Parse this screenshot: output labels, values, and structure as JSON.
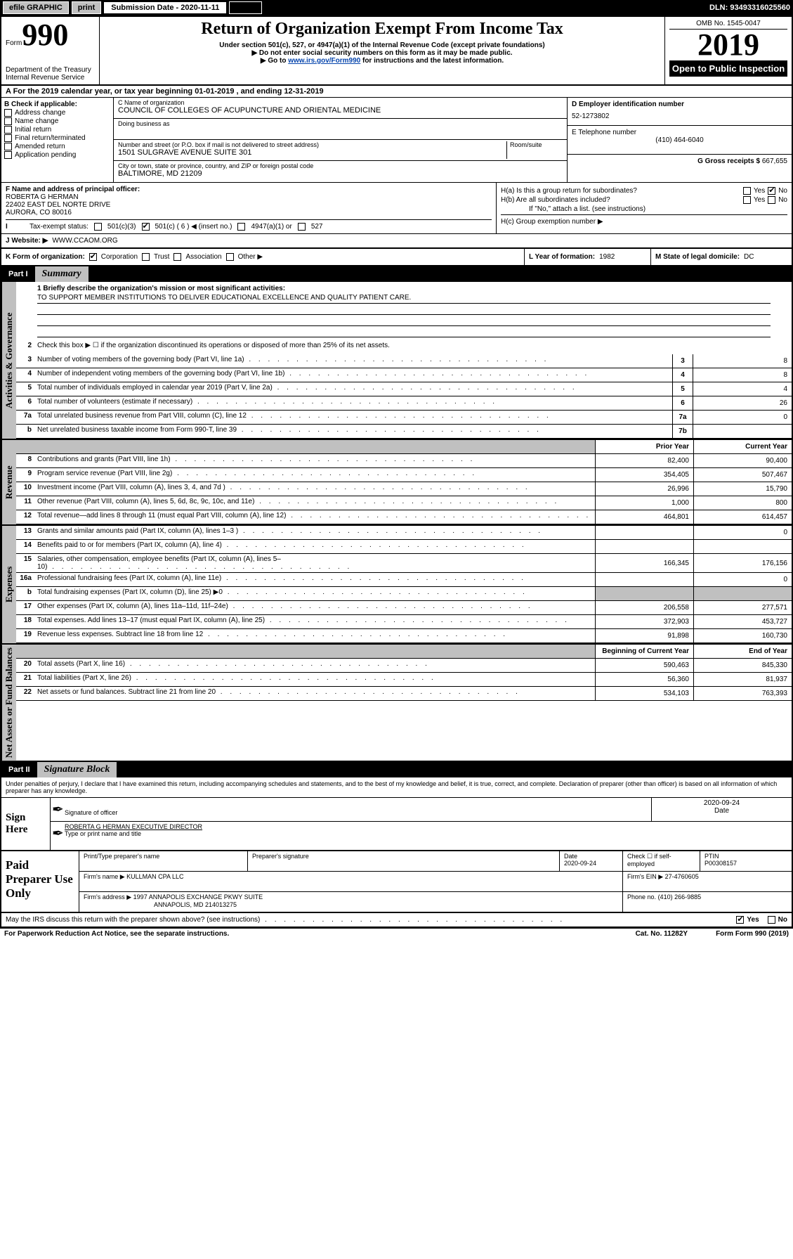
{
  "topbar": {
    "efile": "efile GRAPHIC",
    "print": "print",
    "sub_label": "Submission Date - 2020-11-11",
    "dln": "DLN: 93493316025560"
  },
  "header": {
    "form": "Form",
    "num": "990",
    "dept": "Department of the Treasury\nInternal Revenue Service",
    "title": "Return of Organization Exempt From Income Tax",
    "sub1": "Under section 501(c), 527, or 4947(a)(1) of the Internal Revenue Code (except private foundations)",
    "sub2": "▶ Do not enter social security numbers on this form as it may be made public.",
    "sub3a": "▶ Go to ",
    "sub3_link": "www.irs.gov/Form990",
    "sub3b": " for instructions and the latest information.",
    "omb": "OMB No. 1545-0047",
    "year": "2019",
    "open": "Open to Public Inspection"
  },
  "row_a": "A For the 2019 calendar year, or tax year beginning 01-01-2019    , and ending 12-31-2019",
  "box_b": {
    "title": "B Check if applicable:",
    "items": [
      "Address change",
      "Name change",
      "Initial return",
      "Final return/terminated",
      "Amended return",
      "Application pending"
    ]
  },
  "box_c": {
    "name_lbl": "C Name of organization",
    "name": "COUNCIL OF COLLEGES OF ACUPUNCTURE AND ORIENTAL MEDICINE",
    "dba_lbl": "Doing business as",
    "dba": "",
    "addr_lbl": "Number and street (or P.O. box if mail is not delivered to street address)",
    "room_lbl": "Room/suite",
    "addr": "1501 SULGRAVE AVENUE SUITE 301",
    "city_lbl": "City or town, state or province, country, and ZIP or foreign postal code",
    "city": "BALTIMORE, MD  21209"
  },
  "box_d": {
    "lbl": "D Employer identification number",
    "val": "52-1273802"
  },
  "box_e": {
    "lbl": "E Telephone number",
    "val": "(410) 464-6040"
  },
  "box_g": {
    "lbl": "G Gross receipts $",
    "val": "667,655"
  },
  "box_f": {
    "lbl": "F Name and address of principal officer:",
    "name": "ROBERTA G HERMAN",
    "addr1": "22402 EAST DEL NORTE DRIVE",
    "addr2": "AURORA, CO  80016"
  },
  "box_h": {
    "ha": "H(a)  Is this a group return for subordinates?",
    "hb": "H(b)  Are all subordinates included?",
    "hb_note": "If \"No,\" attach a list. (see instructions)",
    "hc": "H(c)  Group exemption number ▶",
    "yes": "Yes",
    "no": "No"
  },
  "row_i": {
    "lbl": "Tax-exempt status:",
    "o1": "501(c)(3)",
    "o2": "501(c) ( 6 ) ◀ (insert no.)",
    "o3": "4947(a)(1) or",
    "o4": "527"
  },
  "row_j": {
    "lbl": "J   Website: ▶",
    "val": "WWW.CCAOM.ORG"
  },
  "row_k": {
    "lbl": "K Form of organization:",
    "o1": "Corporation",
    "o2": "Trust",
    "o3": "Association",
    "o4": "Other ▶"
  },
  "row_l": {
    "lbl": "L Year of formation:",
    "val": "1982"
  },
  "row_m": {
    "lbl": "M State of legal domicile:",
    "val": "DC"
  },
  "part1": {
    "tag": "Part I",
    "title": "Summary"
  },
  "sideA": "Activities & Governance",
  "sideR": "Revenue",
  "sideE": "Expenses",
  "sideN": "Net Assets or Fund Balances",
  "mission_lbl": "1 Briefly describe the organization's mission or most significant activities:",
  "mission": "TO SUPPORT MEMBER INSTITUTIONS TO DELIVER EDUCATIONAL EXCELLENCE AND QUALITY PATIENT CARE.",
  "line2": "Check this box ▶ ☐  if the organization discontinued its operations or disposed of more than 25% of its net assets.",
  "linesAG": [
    {
      "n": "3",
      "d": "Number of voting members of the governing body (Part VI, line 1a)",
      "c": "3",
      "v": "8"
    },
    {
      "n": "4",
      "d": "Number of independent voting members of the governing body (Part VI, line 1b)",
      "c": "4",
      "v": "8"
    },
    {
      "n": "5",
      "d": "Total number of individuals employed in calendar year 2019 (Part V, line 2a)",
      "c": "5",
      "v": "4"
    },
    {
      "n": "6",
      "d": "Total number of volunteers (estimate if necessary)",
      "c": "6",
      "v": "26"
    },
    {
      "n": "7a",
      "d": "Total unrelated business revenue from Part VIII, column (C), line 12",
      "c": "7a",
      "v": "0"
    },
    {
      "n": "b",
      "d": "Net unrelated business taxable income from Form 990-T, line 39",
      "c": "7b",
      "v": ""
    }
  ],
  "colhdr": {
    "prior": "Prior Year",
    "current": "Current Year",
    "beg": "Beginning of Current Year",
    "end": "End of Year"
  },
  "linesRev": [
    {
      "n": "8",
      "d": "Contributions and grants (Part VIII, line 1h)",
      "p": "82,400",
      "c": "90,400"
    },
    {
      "n": "9",
      "d": "Program service revenue (Part VIII, line 2g)",
      "p": "354,405",
      "c": "507,467"
    },
    {
      "n": "10",
      "d": "Investment income (Part VIII, column (A), lines 3, 4, and 7d )",
      "p": "26,996",
      "c": "15,790"
    },
    {
      "n": "11",
      "d": "Other revenue (Part VIII, column (A), lines 5, 6d, 8c, 9c, 10c, and 11e)",
      "p": "1,000",
      "c": "800"
    },
    {
      "n": "12",
      "d": "Total revenue—add lines 8 through 11 (must equal Part VIII, column (A), line 12)",
      "p": "464,801",
      "c": "614,457"
    }
  ],
  "linesExp": [
    {
      "n": "13",
      "d": "Grants and similar amounts paid (Part IX, column (A), lines 1–3 )",
      "p": "",
      "c": "0"
    },
    {
      "n": "14",
      "d": "Benefits paid to or for members (Part IX, column (A), line 4)",
      "p": "",
      "c": ""
    },
    {
      "n": "15",
      "d": "Salaries, other compensation, employee benefits (Part IX, column (A), lines 5–10)",
      "p": "166,345",
      "c": "176,156"
    },
    {
      "n": "16a",
      "d": "Professional fundraising fees (Part IX, column (A), line 11e)",
      "p": "",
      "c": "0"
    },
    {
      "n": "b",
      "d": "Total fundraising expenses (Part IX, column (D), line 25) ▶0",
      "p": "grey",
      "c": "grey"
    },
    {
      "n": "17",
      "d": "Other expenses (Part IX, column (A), lines 11a–11d, 11f–24e)",
      "p": "206,558",
      "c": "277,571"
    },
    {
      "n": "18",
      "d": "Total expenses. Add lines 13–17 (must equal Part IX, column (A), line 25)",
      "p": "372,903",
      "c": "453,727"
    },
    {
      "n": "19",
      "d": "Revenue less expenses. Subtract line 18 from line 12",
      "p": "91,898",
      "c": "160,730"
    }
  ],
  "linesNet": [
    {
      "n": "20",
      "d": "Total assets (Part X, line 16)",
      "p": "590,463",
      "c": "845,330"
    },
    {
      "n": "21",
      "d": "Total liabilities (Part X, line 26)",
      "p": "56,360",
      "c": "81,937"
    },
    {
      "n": "22",
      "d": "Net assets or fund balances. Subtract line 21 from line 20",
      "p": "534,103",
      "c": "763,393"
    }
  ],
  "part2": {
    "tag": "Part II",
    "title": "Signature Block"
  },
  "perjury": "Under penalties of perjury, I declare that I have examined this return, including accompanying schedules and statements, and to the best of my knowledge and belief, it is true, correct, and complete. Declaration of preparer (other than officer) is based on all information of which preparer has any knowledge.",
  "sign": {
    "lbl": "Sign Here",
    "sig_lbl": "Signature of officer",
    "date": "2020-09-24",
    "date_lbl": "Date",
    "name": "ROBERTA G HERMAN  EXECUTIVE DIRECTOR",
    "name_lbl": "Type or print name and title"
  },
  "paid": {
    "lbl": "Paid Preparer Use Only",
    "h1": "Print/Type preparer's name",
    "h2": "Preparer's signature",
    "h3": "Date",
    "h3v": "2020-09-24",
    "h4": "Check ☐ if self-employed",
    "h5": "PTIN",
    "h5v": "P00308157",
    "firm_lbl": "Firm's name    ▶",
    "firm": "KULLMAN CPA LLC",
    "ein_lbl": "Firm's EIN ▶",
    "ein": "27-4760605",
    "addr_lbl": "Firm's address ▶",
    "addr1": "1997 ANNAPOLIS EXCHANGE PKWY SUITE",
    "addr2": "ANNAPOLIS, MD  214013275",
    "phone_lbl": "Phone no.",
    "phone": "(410) 266-9885"
  },
  "discuss": "May the IRS discuss this return with the preparer shown above? (see instructions)",
  "discuss_yes": "Yes",
  "discuss_no": "No",
  "footer": {
    "pra": "For Paperwork Reduction Act Notice, see the separate instructions.",
    "cat": "Cat. No. 11282Y",
    "form": "Form 990 (2019)"
  }
}
